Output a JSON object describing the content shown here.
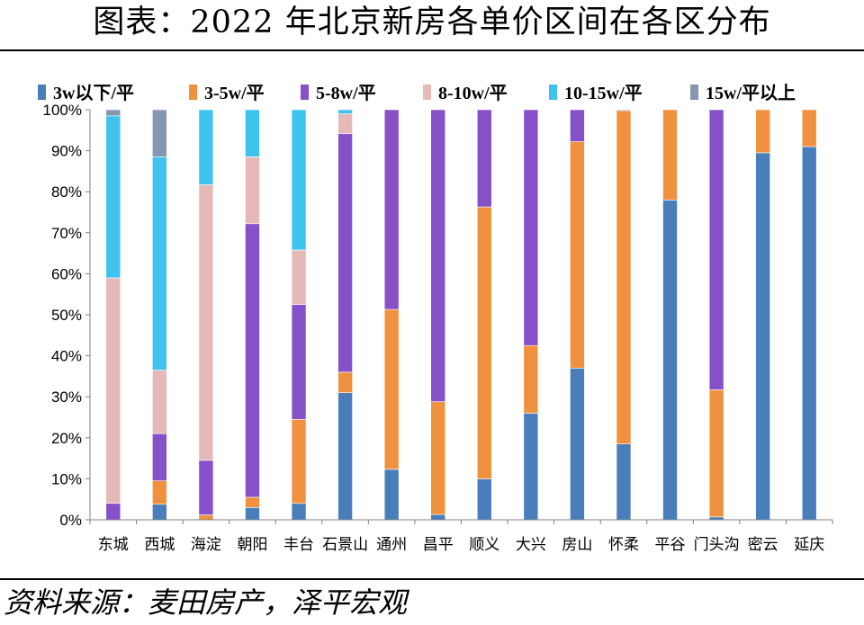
{
  "page": {
    "title": "图表：2022 年北京新房各单价区间在各区分布",
    "source": "资料来源：麦田房产，泽平宏观"
  },
  "chart_data": {
    "type": "bar",
    "stacked": true,
    "title": "图表：2022 年北京新房各单价区间在各区分布",
    "xlabel": "",
    "ylabel": "",
    "ylim": [
      0,
      100
    ],
    "yticks": [
      "0%",
      "10%",
      "20%",
      "30%",
      "40%",
      "50%",
      "60%",
      "70%",
      "80%",
      "90%",
      "100%"
    ],
    "legend_position": "top",
    "categories": [
      "东城",
      "西城",
      "海淀",
      "朝阳",
      "丰台",
      "石景山",
      "通州",
      "昌平",
      "顺义",
      "大兴",
      "房山",
      "怀柔",
      "平谷",
      "门头沟",
      "密云",
      "延庆"
    ],
    "series": [
      {
        "name": "3w以下/平",
        "color": "#4a7ebb",
        "values": [
          0,
          3.8,
          0,
          3,
          4,
          31,
          12.3,
          1.3,
          10,
          26,
          37,
          18.5,
          78,
          0.7,
          89.5,
          91
        ]
      },
      {
        "name": "3-5w/平",
        "color": "#f0913f",
        "values": [
          0,
          5.7,
          1.2,
          2.5,
          20.5,
          5,
          39,
          27.5,
          66.3,
          16.5,
          55.2,
          81.3,
          22,
          31,
          10.5,
          9
        ]
      },
      {
        "name": "5-8w/平",
        "color": "#8650c8",
        "values": [
          4,
          11.5,
          13.3,
          66.7,
          28,
          58.2,
          48.7,
          71.2,
          23.7,
          57.5,
          7.8,
          0.2,
          0,
          68.3,
          0,
          0
        ]
      },
      {
        "name": "8-10w/平",
        "color": "#e6b9b8",
        "values": [
          55,
          15.5,
          67.2,
          16.3,
          13.3,
          4.8,
          0,
          0,
          0,
          0,
          0,
          0,
          0,
          0,
          0,
          0
        ]
      },
      {
        "name": "10-15w/平",
        "color": "#3ec3ef",
        "values": [
          39.5,
          52,
          18.3,
          11.5,
          34.2,
          1,
          0,
          0,
          0,
          0,
          0,
          0,
          0,
          0,
          0,
          0
        ]
      },
      {
        "name": "15w/平以上",
        "color": "#8496b0",
        "values": [
          1.5,
          11.5,
          0,
          0,
          0,
          0,
          0,
          0,
          0,
          0,
          0,
          0,
          0,
          0,
          0,
          0
        ]
      }
    ]
  }
}
